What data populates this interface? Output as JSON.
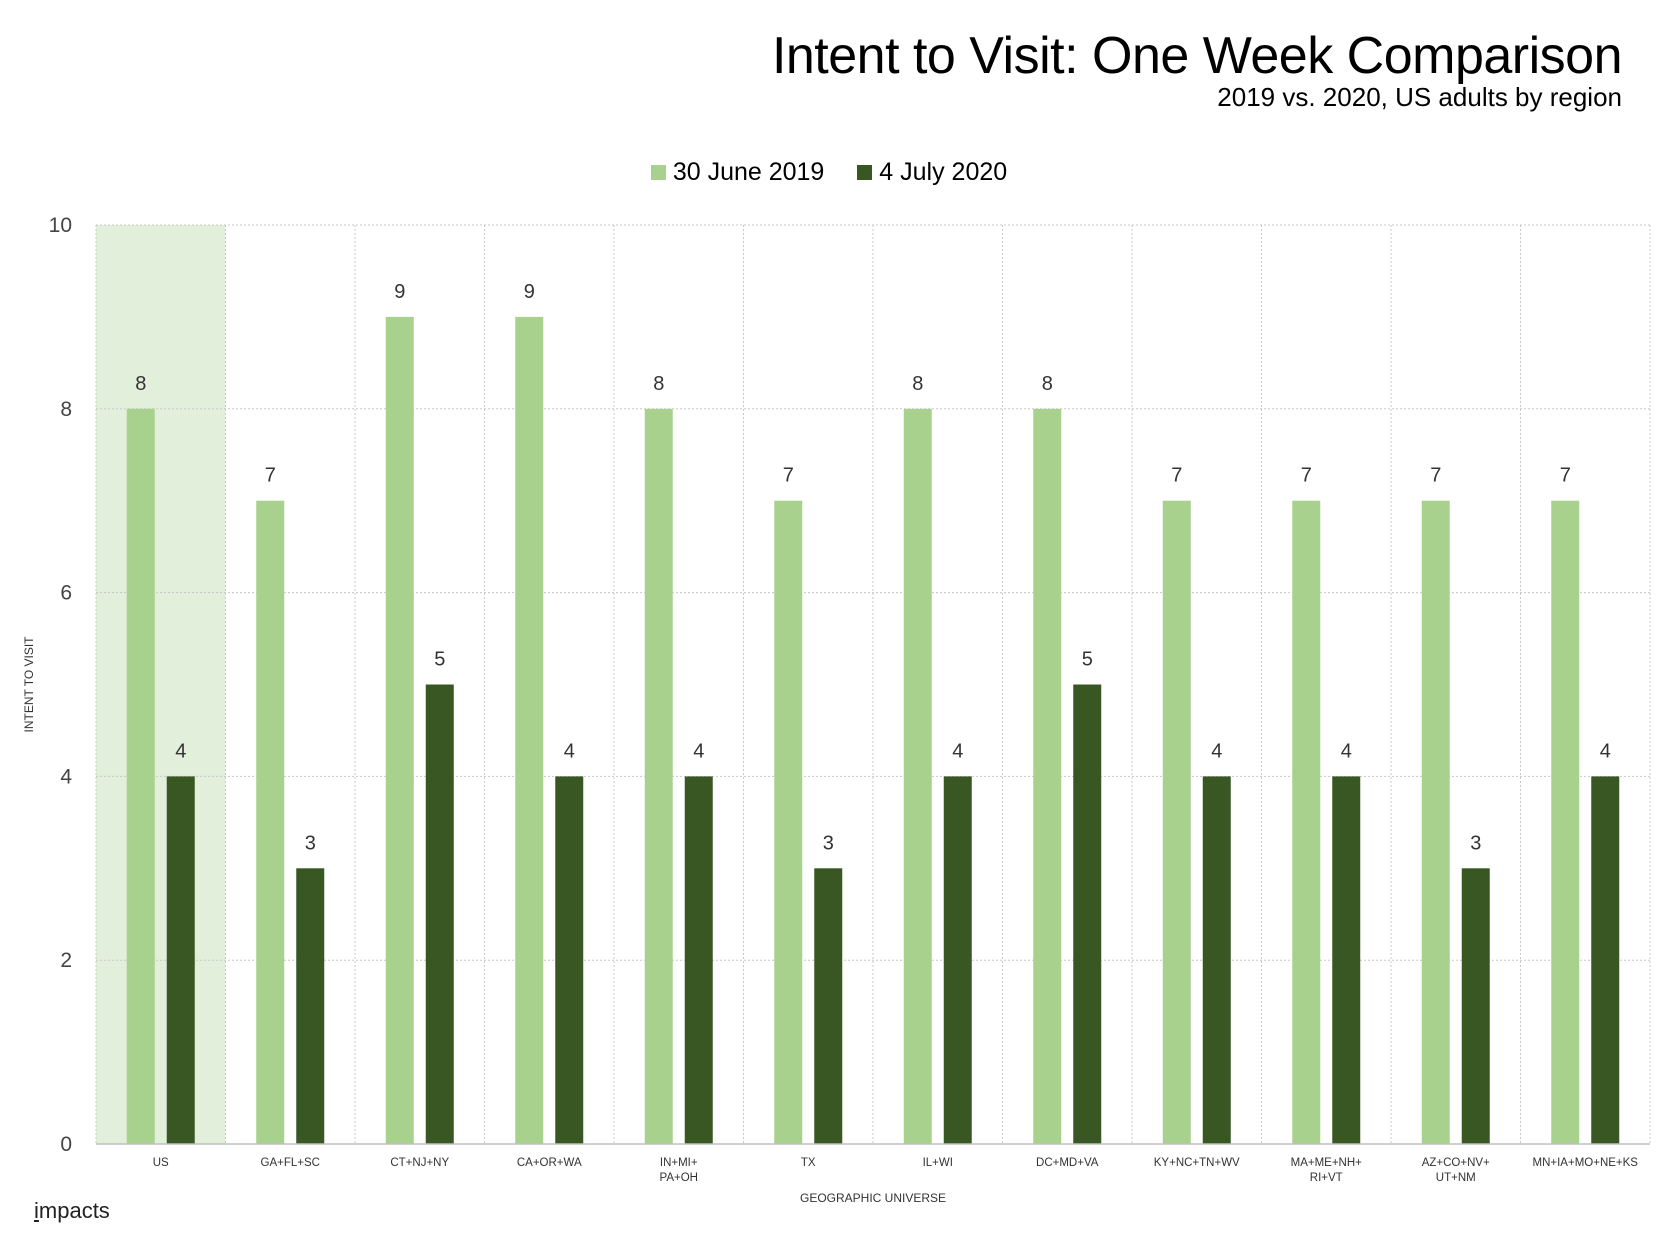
{
  "chart_data": {
    "type": "bar",
    "title": "Intent to Visit: One Week Comparison",
    "subtitle": "2019 vs. 2020, US adults by region",
    "xlabel": "GEOGRAPHIC UNIVERSE",
    "ylabel": "INTENT TO VISIT",
    "ylim": [
      0,
      10
    ],
    "yticks": [
      0,
      2,
      4,
      6,
      8,
      10
    ],
    "grid": true,
    "legend_position": "top-center",
    "highlighted_category": "US",
    "categories": [
      [
        "US"
      ],
      [
        "GA+FL+SC"
      ],
      [
        "CT+NJ+NY"
      ],
      [
        "CA+OR+WA"
      ],
      [
        "IN+MI+",
        "PA+OH"
      ],
      [
        "TX"
      ],
      [
        "IL+WI"
      ],
      [
        "DC+MD+VA"
      ],
      [
        "KY+NC+TN+WV"
      ],
      [
        "MA+ME+NH+",
        "RI+VT"
      ],
      [
        "AZ+CO+NV+",
        "UT+NM"
      ],
      [
        "MN+IA+MO+NE+KS"
      ]
    ],
    "series": [
      {
        "name": "30 June 2019",
        "color": "#a9d18e",
        "values": [
          8,
          7,
          9,
          9,
          8,
          7,
          8,
          8,
          7,
          7,
          7,
          7
        ]
      },
      {
        "name": "4 July 2020",
        "color": "#385723",
        "values": [
          4,
          3,
          5,
          4,
          4,
          3,
          4,
          5,
          4,
          4,
          3,
          4
        ]
      }
    ]
  },
  "colors": {
    "highlight": "#e2efda",
    "grid": "#c8c8c8"
  },
  "brand": {
    "mark": "i",
    "text": "mpacts"
  }
}
